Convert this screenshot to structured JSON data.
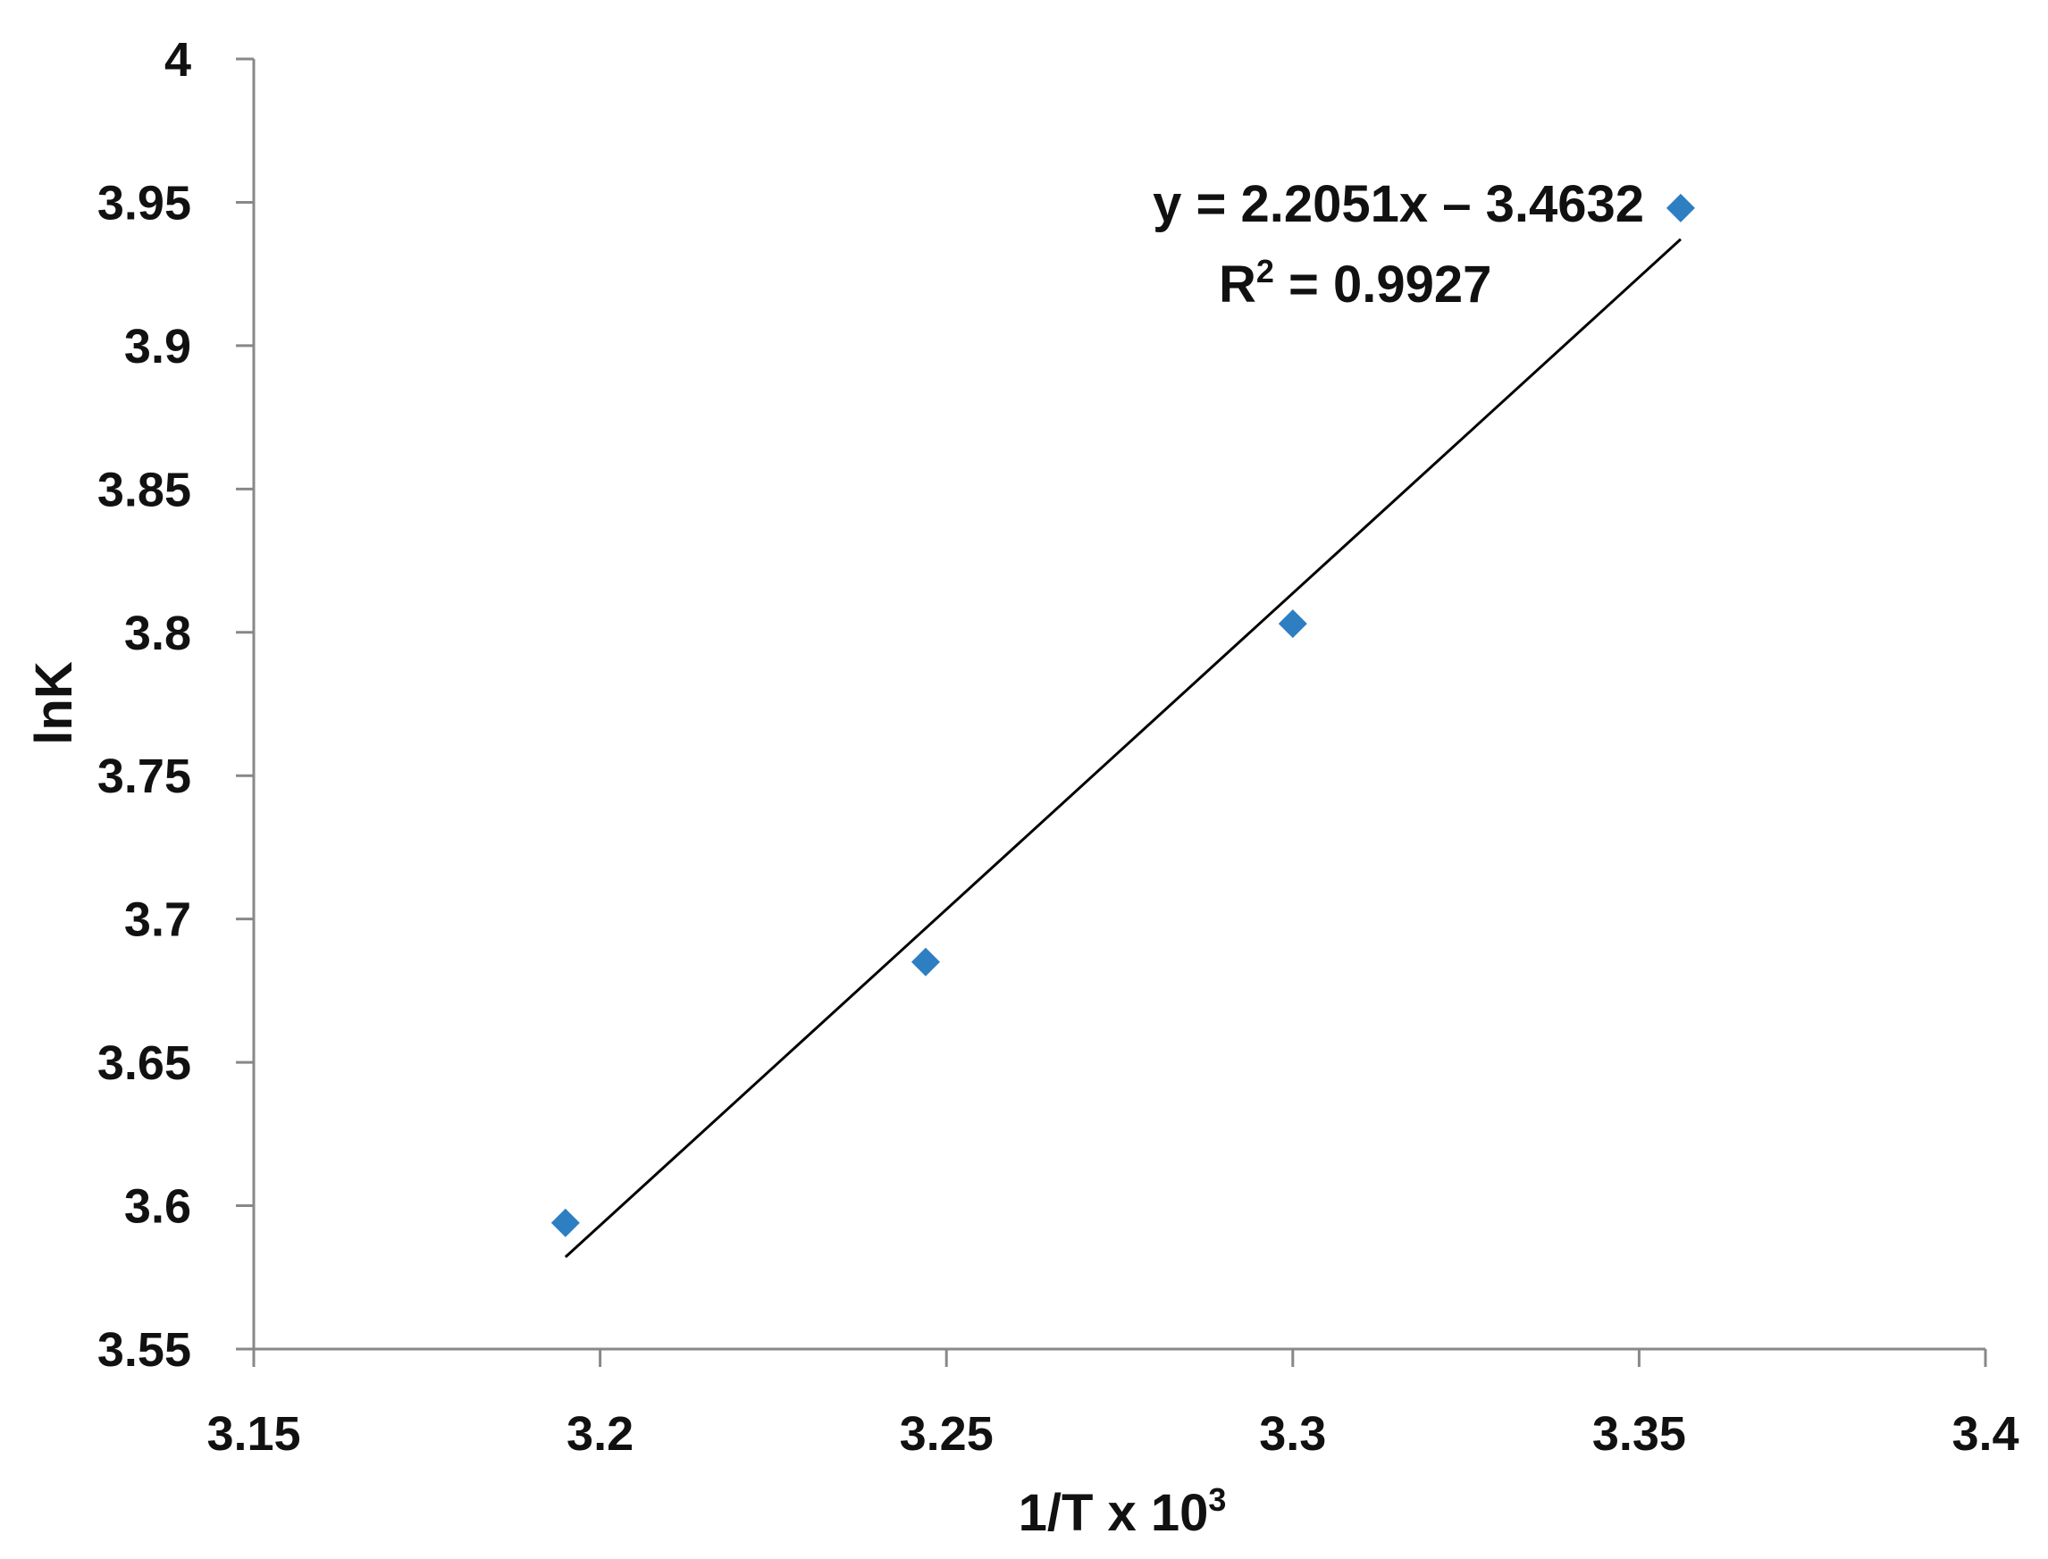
{
  "chart_data": {
    "type": "scatter",
    "title": "",
    "xlabel": "1/T x 10",
    "xlabel_sup": "3",
    "ylabel": "lnK",
    "xlim": [
      3.15,
      3.4
    ],
    "ylim": [
      3.55,
      4.0
    ],
    "x_ticks": [
      3.15,
      3.2,
      3.25,
      3.3,
      3.35,
      3.4
    ],
    "x_tick_labels": [
      "3.15",
      "3.2",
      "3.25",
      "3.3",
      "3.35",
      "3.4"
    ],
    "y_ticks": [
      3.55,
      3.6,
      3.65,
      3.7,
      3.75,
      3.8,
      3.85,
      3.9,
      3.95,
      4.0
    ],
    "y_tick_labels": [
      "3.55",
      "3.6",
      "3.65",
      "3.7",
      "3.75",
      "3.8",
      "3.85",
      "3.9",
      "3.95",
      "4"
    ],
    "grid": false,
    "series": [
      {
        "marker": "diamond",
        "color": "#2E7EC2",
        "x": [
          3.195,
          3.247,
          3.3,
          3.356
        ],
        "y": [
          3.594,
          3.685,
          3.803,
          3.948
        ]
      }
    ],
    "trendline": {
      "slope": 2.2051,
      "intercept": -3.4632,
      "x_range": [
        3.195,
        3.356
      ],
      "color": "#000000",
      "equation_text": "y = 2.2051x – 3.4632",
      "r2_text_prefix": "R",
      "r2_text_sup": "2",
      "r2_text_suffix": " = 0.9927"
    },
    "colors": {
      "axis": "#888888",
      "text": "#111111"
    }
  }
}
